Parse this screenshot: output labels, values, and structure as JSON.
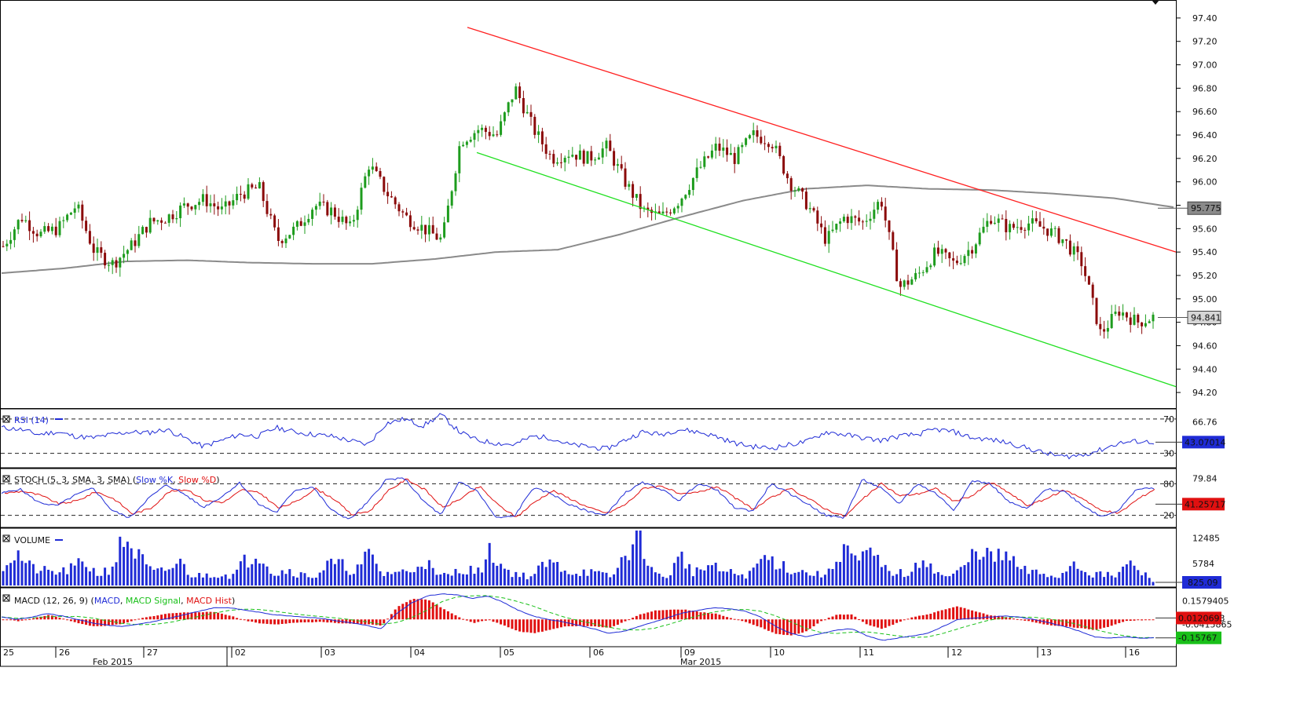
{
  "chart_data": [
    {
      "type": "candlestick",
      "panel": "price",
      "y_ticks": [
        "97.40",
        "97.20",
        "97.00",
        "96.80",
        "96.60",
        "96.40",
        "96.20",
        "96.00",
        "95.80",
        "95.60",
        "95.40",
        "95.20",
        "95.00",
        "94.80",
        "94.60",
        "94.40",
        "94.20"
      ],
      "y_tick_values": [
        97.4,
        97.2,
        97.0,
        96.8,
        96.6,
        96.4,
        96.2,
        96.0,
        95.8,
        95.6,
        95.4,
        95.2,
        95.0,
        94.8,
        94.6,
        94.4,
        94.2
      ],
      "ylim": [
        94.1,
        97.5
      ],
      "moving_average_label": "95.775",
      "moving_average_value": 95.775,
      "last_price_label": "94.841",
      "last_price_value": 94.841,
      "channel_upper": {
        "start": 97.32,
        "end": 95.4
      },
      "channel_lower": {
        "start": 96.25,
        "end": 94.25
      },
      "ma_path": [
        95.22,
        95.26,
        95.32,
        95.33,
        95.31,
        95.3,
        95.3,
        95.34,
        95.4,
        95.42,
        95.55,
        95.7,
        95.84,
        95.94,
        95.97,
        95.94,
        95.93,
        95.9,
        95.86,
        95.78
      ],
      "price_path": [
        95.45,
        95.7,
        95.55,
        95.6,
        95.8,
        95.4,
        95.3,
        95.45,
        95.65,
        95.7,
        95.8,
        95.85,
        95.75,
        95.9,
        95.95,
        95.5,
        95.6,
        95.8,
        95.75,
        95.6,
        96.15,
        95.9,
        95.7,
        95.6,
        95.5,
        96.35,
        96.45,
        96.4,
        96.8,
        96.45,
        96.2,
        96.25,
        96.2,
        96.3,
        96.0,
        95.75,
        95.7,
        95.85,
        96.1,
        96.3,
        96.2,
        96.4,
        96.35,
        96.0,
        95.8,
        95.5,
        95.7,
        95.65,
        95.85,
        95.1,
        95.2,
        95.4,
        95.3,
        95.45,
        95.7,
        95.6,
        95.65,
        95.6,
        95.5,
        95.3,
        94.7,
        94.9,
        94.8,
        94.85
      ]
    },
    {
      "type": "line",
      "panel": "rsi",
      "title": "RSI (14)",
      "levels": [
        "70",
        "30"
      ],
      "level_values": [
        70,
        30
      ],
      "ticks": [
        "66.76"
      ],
      "current_label": "43.07014",
      "current": 43.07,
      "ylim": [
        15,
        80
      ],
      "values": [
        60,
        58,
        52,
        55,
        50,
        48,
        52,
        55,
        54,
        58,
        48,
        38,
        45,
        52,
        50,
        60,
        55,
        52,
        50,
        45,
        40,
        65,
        70,
        62,
        75,
        55,
        45,
        42,
        40,
        50,
        48,
        40,
        38,
        35,
        45,
        55,
        52,
        58,
        55,
        50,
        42,
        38,
        36,
        40,
        44,
        55,
        52,
        48,
        45,
        50,
        52,
        58,
        55,
        48,
        46,
        42,
        36,
        30,
        26,
        28,
        34,
        42,
        44,
        43
      ]
    },
    {
      "type": "line",
      "panel": "stoch",
      "title": "STOCH (5, 3, SMA, 3, SMA)",
      "series": [
        {
          "name": "Slow %K",
          "color": "#1f2bd6"
        },
        {
          "name": "Slow %D",
          "color": "#e01010"
        }
      ],
      "levels": [
        "80",
        "20"
      ],
      "level_values": [
        80,
        20
      ],
      "ticks": [
        "79.84"
      ],
      "current_label": "41.25717",
      "current": 41.26,
      "ylim": [
        0,
        100
      ],
      "k_values": [
        62,
        70,
        45,
        38,
        58,
        72,
        30,
        15,
        52,
        78,
        60,
        35,
        55,
        82,
        42,
        25,
        68,
        74,
        30,
        12,
        45,
        88,
        90,
        48,
        20,
        85,
        65,
        15,
        18,
        72,
        62,
        40,
        28,
        20,
        62,
        82,
        70,
        48,
        80,
        70,
        35,
        28,
        80,
        62,
        42,
        20,
        15,
        88,
        72,
        42,
        80,
        62,
        30,
        86,
        80,
        45,
        32,
        70,
        66,
        40,
        18,
        30,
        70,
        72
      ]
    },
    {
      "type": "bar",
      "panel": "volume",
      "title": "VOLUME",
      "ticks": [
        "12485",
        "5784"
      ],
      "tick_values": [
        12485,
        5784
      ],
      "current_label": "825.09",
      "current": 825.09,
      "ylim": [
        0,
        14500
      ],
      "values": [
        6000,
        9000,
        5000,
        4000,
        3500,
        4500,
        6500,
        3000,
        5000,
        13500,
        8000,
        3500,
        4000,
        6500,
        2500,
        3000,
        3200,
        2800,
        7500,
        9500,
        3000,
        4500,
        3000,
        2500,
        6000,
        5500,
        4000,
        8500,
        3000,
        4000,
        3500,
        7800,
        2500,
        3000,
        5000,
        3500,
        9500,
        4500,
        3000,
        2500,
        6000,
        5500,
        3500,
        4000,
        3000,
        2500,
        9500,
        14200,
        3000,
        2500,
        8000,
        3500,
        5500,
        4000,
        3200,
        2800,
        7600,
        6800,
        4500,
        3800,
        3000,
        3500,
        12000,
        6000,
        9000,
        4500,
        3500,
        3000,
        8500,
        3000,
        2500,
        5500,
        11000,
        7000,
        8500,
        4500,
        3500,
        3000,
        2500,
        6800,
        3500,
        3000,
        2500,
        6000,
        3500,
        825
      ]
    },
    {
      "type": "line",
      "panel": "macd",
      "title": "MACD (12, 26, 9)",
      "series": [
        {
          "name": "MACD",
          "color": "#1f2bd6"
        },
        {
          "name": "MACD Signal",
          "color": "#19c019"
        },
        {
          "name": "MACD Hist",
          "color": "#e01010"
        }
      ],
      "ticks": [
        "0.1579405",
        "-0.0415865"
      ],
      "tick_values": [
        0.1579,
        -0.0416
      ],
      "current_macd_label": "-0.15767",
      "current_macd": -0.1577,
      "current_signal_label": "0.0120693",
      "current_signal": 0.0121,
      "ylim": [
        -0.22,
        0.25
      ],
      "macd_values": [
        0.02,
        0.0,
        0.02,
        0.05,
        0.03,
        0.0,
        -0.03,
        -0.05,
        -0.06,
        -0.04,
        -0.02,
        0.01,
        0.04,
        0.07,
        0.1,
        0.1,
        0.08,
        0.06,
        0.04,
        0.03,
        0.02,
        0.01,
        -0.01,
        -0.03,
        -0.05,
        -0.08,
        0.05,
        0.14,
        0.2,
        0.22,
        0.21,
        0.18,
        0.2,
        0.15,
        0.08,
        0.03,
        0.0,
        -0.02,
        -0.05,
        -0.08,
        -0.12,
        -0.1,
        -0.06,
        -0.02,
        0.02,
        0.06,
        0.08,
        0.1,
        0.09,
        0.07,
        0.02,
        -0.06,
        -0.12,
        -0.15,
        -0.12,
        -0.09,
        -0.08,
        -0.14,
        -0.18,
        -0.16,
        -0.14,
        -0.12,
        -0.06,
        0.0,
        0.01,
        0.02,
        0.03,
        0.02,
        0.0,
        -0.03,
        -0.06,
        -0.1,
        -0.15,
        -0.16,
        -0.15,
        -0.16,
        -0.158
      ]
    }
  ],
  "x_axis": {
    "day_labels": [
      "25",
      "26",
      "27",
      "02",
      "03",
      "04",
      "05",
      "06",
      "09",
      "10",
      "11",
      "12",
      "13",
      "16"
    ],
    "month_labels": [
      "Feb 2015",
      "Mar 2015"
    ]
  },
  "colors": {
    "up_candle": "#1e9c1e",
    "down_candle": "#8b0a0a",
    "channel_upper": "#ff2020",
    "channel_lower": "#20e020",
    "moving_average": "#8a8a8a",
    "rsi_line": "#1f2bd6",
    "volume_bars": "#1f2bd6"
  }
}
